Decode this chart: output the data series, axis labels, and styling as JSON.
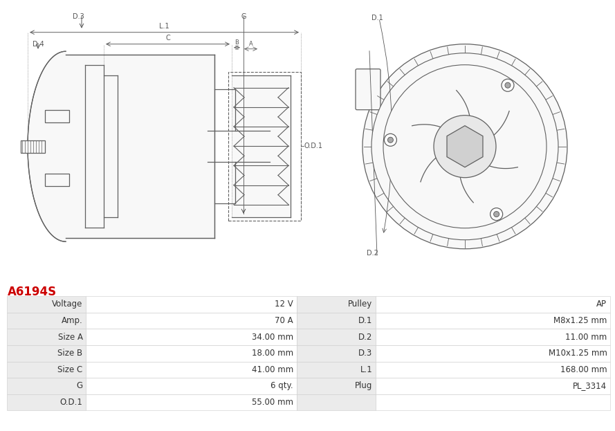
{
  "title": "A6194S",
  "title_color": "#cc0000",
  "title_fontsize": 12,
  "bg_color": "#ffffff",
  "table_row_bg1": "#ebebeb",
  "table_row_bg2": "#ffffff",
  "table_text_color": "#333333",
  "table_fontsize": 8.5,
  "rows": [
    [
      "Voltage",
      "12 V",
      "Pulley",
      "AP"
    ],
    [
      "Amp.",
      "70 A",
      "D.1",
      "M8x1.25 mm"
    ],
    [
      "Size A",
      "34.00 mm",
      "D.2",
      "11.00 mm"
    ],
    [
      "Size B",
      "18.00 mm",
      "D.3",
      "M10x1.25 mm"
    ],
    [
      "Size C",
      "41.00 mm",
      "L.1",
      "168.00 mm"
    ],
    [
      "G",
      "6 qty.",
      "Plug",
      "PL_3314"
    ],
    [
      "O.D.1",
      "55.00 mm",
      "",
      ""
    ]
  ],
  "line_color": "#606060",
  "label_color": "#555555",
  "label_fontsize": 7.0
}
